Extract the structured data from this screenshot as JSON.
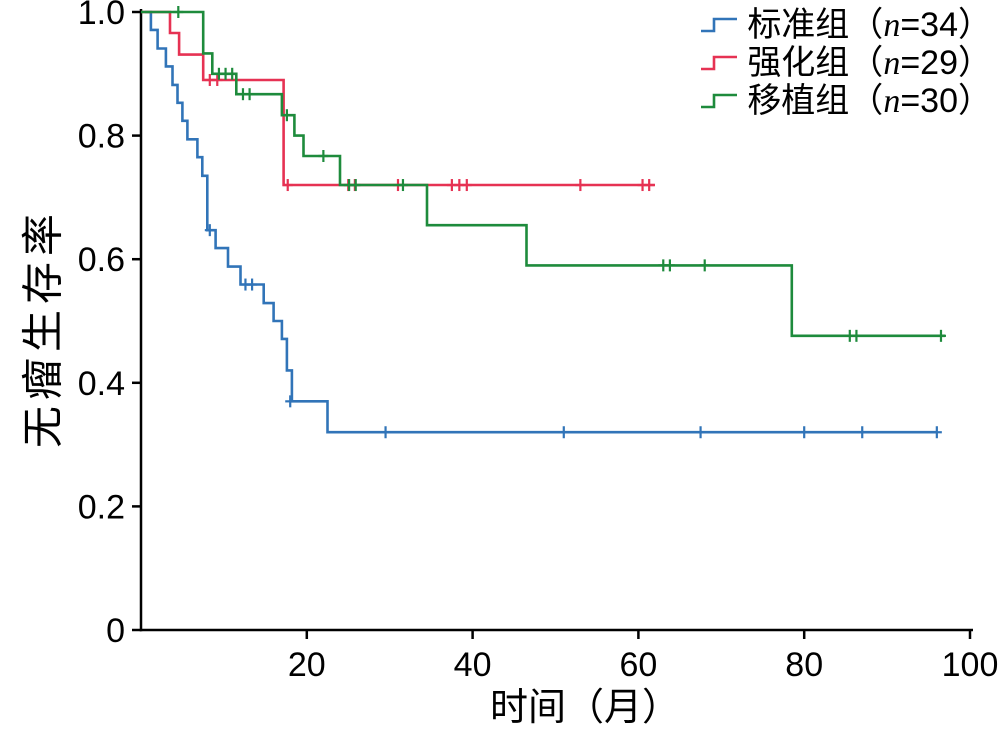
{
  "chart_data": {
    "type": "line",
    "subtype": "kaplan-meier-step-survival",
    "title": "",
    "xlabel": "时间（月）",
    "ylabel": "无瘤生存率",
    "xlim": [
      0,
      100
    ],
    "ylim": [
      0,
      1.0
    ],
    "x_ticks": [
      "20",
      "40",
      "60",
      "80",
      "100"
    ],
    "y_ticks": [
      "0",
      "0.2",
      "0.4",
      "0.6",
      "0.8",
      "1.0"
    ],
    "axis_color": "#000000",
    "grid": "off",
    "legend_position": "top-right",
    "series": [
      {
        "key": "standard",
        "name": "标准组",
        "n": 34,
        "label_pre": "标准组（",
        "label_n": "n",
        "label_post": "=34）",
        "color": "#3174b8",
        "steps": [
          [
            0.5,
            1.0
          ],
          [
            1.2,
            0.971
          ],
          [
            2,
            0.941
          ],
          [
            3,
            0.912
          ],
          [
            3.8,
            0.882
          ],
          [
            4.4,
            0.853
          ],
          [
            5,
            0.824
          ],
          [
            5.6,
            0.794
          ],
          [
            6.8,
            0.765
          ],
          [
            7.4,
            0.735
          ],
          [
            8,
            0.647
          ],
          [
            9,
            0.618
          ],
          [
            10.5,
            0.588
          ],
          [
            12,
            0.559
          ],
          [
            14.8,
            0.529
          ],
          [
            16,
            0.5
          ],
          [
            17,
            0.471
          ],
          [
            17.6,
            0.42
          ],
          [
            18.2,
            0.37
          ],
          [
            22.5,
            0.32
          ],
          [
            96,
            0.32
          ]
        ],
        "censors": [
          [
            8.3,
            0.647
          ],
          [
            12.6,
            0.559
          ],
          [
            13.4,
            0.559
          ],
          [
            18,
            0.37
          ],
          [
            29.5,
            0.32
          ],
          [
            51,
            0.32
          ],
          [
            67.5,
            0.32
          ],
          [
            80,
            0.32
          ],
          [
            87,
            0.32
          ],
          [
            96,
            0.32
          ]
        ]
      },
      {
        "key": "intensified",
        "name": "强化组",
        "n": 29,
        "label_pre": "强化组（",
        "label_n": "n",
        "label_post": "=29）",
        "color": "#e63253",
        "steps": [
          [
            0,
            1.0
          ],
          [
            3.5,
            0.966
          ],
          [
            4.6,
            0.931
          ],
          [
            7.5,
            0.89
          ],
          [
            17.2,
            0.72
          ],
          [
            62,
            0.72
          ]
        ],
        "censors": [
          [
            8.3,
            0.89
          ],
          [
            9.2,
            0.89
          ],
          [
            17.7,
            0.72
          ],
          [
            25,
            0.72
          ],
          [
            25.8,
            0.72
          ],
          [
            31,
            0.72
          ],
          [
            37.5,
            0.72
          ],
          [
            38.4,
            0.72
          ],
          [
            39.3,
            0.72
          ],
          [
            53,
            0.72
          ],
          [
            60.5,
            0.72
          ],
          [
            61.3,
            0.72
          ]
        ]
      },
      {
        "key": "transplant",
        "name": "移植组",
        "n": 30,
        "label_pre": "移植组（",
        "label_n": "n",
        "label_post": "=30）",
        "color": "#1e8b3c",
        "steps": [
          [
            0,
            1.0
          ],
          [
            7.5,
            0.933
          ],
          [
            8.6,
            0.9
          ],
          [
            11.5,
            0.867
          ],
          [
            17,
            0.833
          ],
          [
            18.5,
            0.8
          ],
          [
            19.6,
            0.767
          ],
          [
            24,
            0.72
          ],
          [
            34.5,
            0.655
          ],
          [
            46.5,
            0.59
          ],
          [
            78.5,
            0.476
          ],
          [
            97,
            0.476
          ]
        ],
        "censors": [
          [
            4.5,
            1.0
          ],
          [
            9.4,
            0.9
          ],
          [
            10.2,
            0.9
          ],
          [
            11,
            0.9
          ],
          [
            12.3,
            0.867
          ],
          [
            13.1,
            0.867
          ],
          [
            17.6,
            0.833
          ],
          [
            22,
            0.767
          ],
          [
            25.1,
            0.72
          ],
          [
            25.9,
            0.72
          ],
          [
            31.6,
            0.72
          ],
          [
            63,
            0.59
          ],
          [
            63.8,
            0.59
          ],
          [
            68,
            0.59
          ],
          [
            85.5,
            0.476
          ],
          [
            86.3,
            0.476
          ],
          [
            96.5,
            0.476
          ]
        ]
      }
    ]
  }
}
